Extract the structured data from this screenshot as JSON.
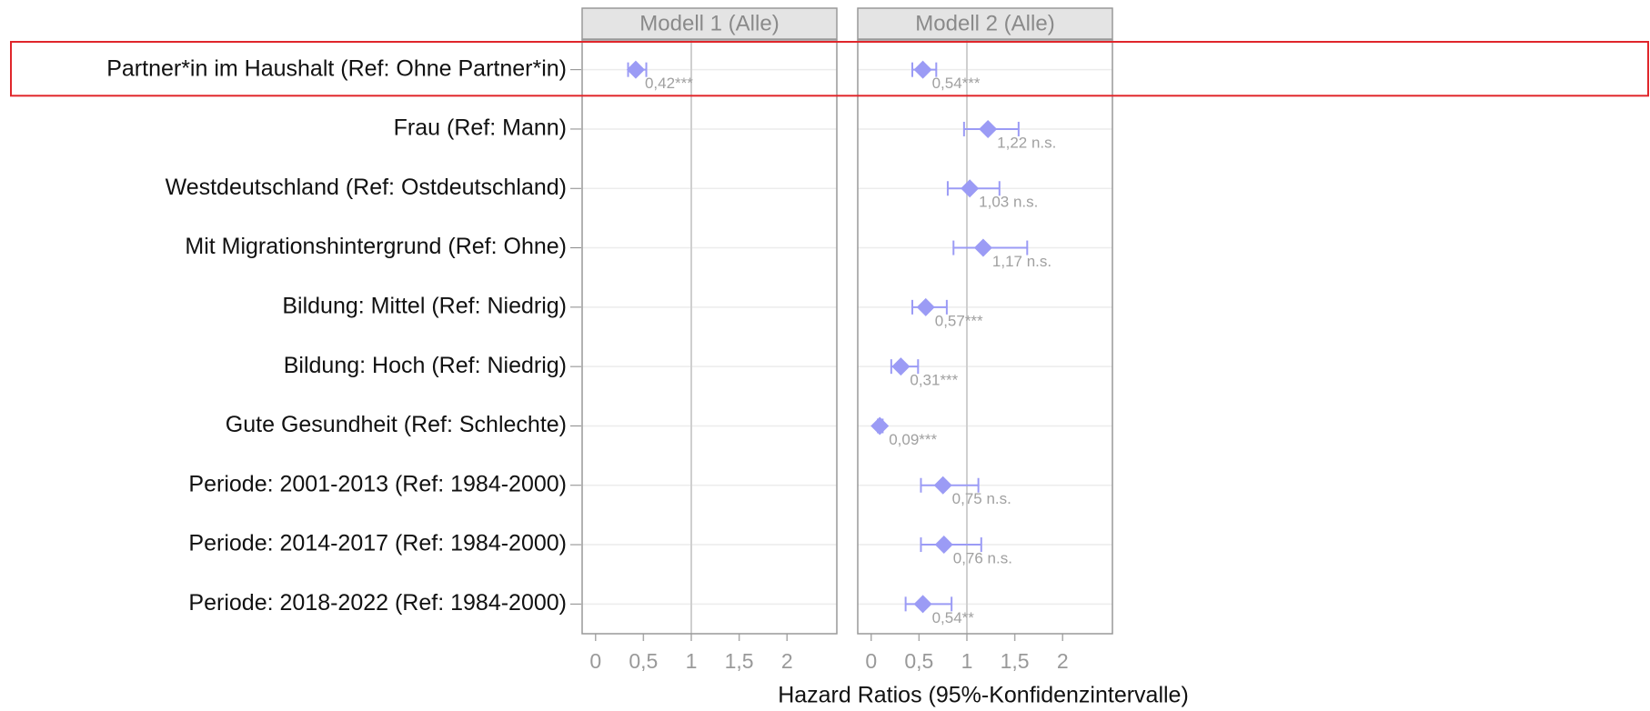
{
  "chart_data": {
    "type": "forest",
    "x_label": "Hazard Ratios (95%-Konfidenzintervalle)",
    "categories": [
      "Partner*in im Haushalt (Ref: Ohne Partner*in)",
      "Frau (Ref: Mann)",
      "Westdeutschland (Ref: Ostdeutschland)",
      "Mit Migrationshintergrund (Ref: Ohne)",
      "Bildung: Mittel (Ref: Niedrig)",
      "Bildung: Hoch (Ref: Niedrig)",
      "Gute Gesundheit (Ref: Schlechte)",
      "Periode: 2001-2013 (Ref: 1984-2000)",
      "Periode: 2014-2017 (Ref: 1984-2000)",
      "Periode: 2018-2022 (Ref: 1984-2000)"
    ],
    "series": [
      {
        "name": "Modell 1 (Alle)",
        "color": "#9b9bf5",
        "values": [
          0.42,
          null,
          null,
          null,
          null,
          null,
          null,
          null,
          null,
          null
        ],
        "value_labels": [
          "0,42***",
          null,
          null,
          null,
          null,
          null,
          null,
          null,
          null,
          null
        ],
        "ci_low": [
          0.34,
          null,
          null,
          null,
          null,
          null,
          null,
          null,
          null,
          null
        ],
        "ci_high": [
          0.53,
          null,
          null,
          null,
          null,
          null,
          null,
          null,
          null,
          null
        ]
      },
      {
        "name": "Modell 2 (Alle)",
        "color": "#9b9bf5",
        "values": [
          0.54,
          1.22,
          1.03,
          1.17,
          0.57,
          0.31,
          0.09,
          0.75,
          0.76,
          0.54
        ],
        "value_labels": [
          "0,54***",
          "1,22 n.s.",
          "1,03 n.s.",
          "1,17 n.s.",
          "0,57***",
          "0,31***",
          "0,09***",
          "0,75 n.s.",
          "0,76 n.s.",
          "0,54**"
        ],
        "ci_low": [
          0.43,
          0.97,
          0.8,
          0.86,
          0.43,
          0.21,
          0.07,
          0.52,
          0.52,
          0.36
        ],
        "ci_high": [
          0.68,
          1.54,
          1.34,
          1.63,
          0.79,
          0.49,
          0.12,
          1.12,
          1.15,
          0.84
        ]
      }
    ],
    "xlim": [
      -0.14,
      2.52
    ],
    "xticks": [
      0,
      {
        "value": 0.5,
        "label": "0,5"
      },
      1,
      {
        "value": 1.5,
        "label": "1,5"
      },
      2
    ],
    "reference_line": 1
  }
}
